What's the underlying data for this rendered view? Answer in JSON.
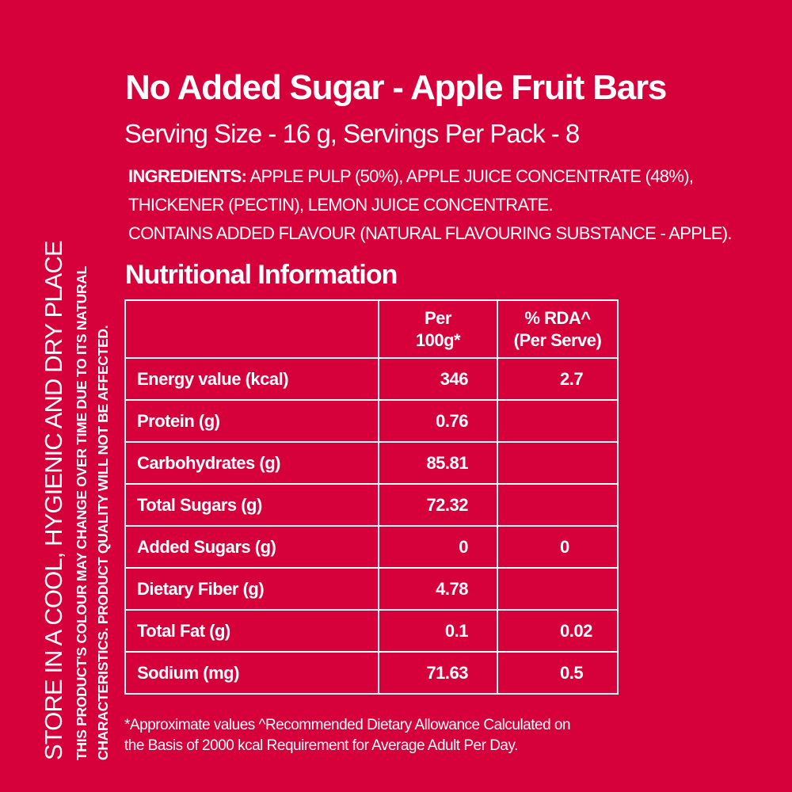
{
  "title": "No Added Sugar - Apple Fruit Bars",
  "serving": "Serving Size  - 16 g, Servings Per Pack - 8",
  "ingredients": {
    "label": "INGREDIENTS:",
    "line1": " APPLE PULP (50%), APPLE JUICE CONCENTRATE (48%),",
    "line2": "THICKENER (PECTIN), LEMON JUICE CONCENTRATE.",
    "line3": "CONTAINS ADDED FLAVOUR (NATURAL FLAVOURING SUBSTANCE - APPLE)."
  },
  "nutrition": {
    "heading": "Nutritional Information",
    "header_per100_line1": "Per",
    "header_per100_line2": "100g*",
    "header_rda_line1": "% RDA^",
    "header_rda_line2": "(Per Serve)",
    "rows": [
      {
        "name": "Energy value (kcal)",
        "per100": "346",
        "rda": "2.7"
      },
      {
        "name": "Protein (g)",
        "per100": "0.76",
        "rda": ""
      },
      {
        "name": "Carbohydrates (g)",
        "per100": "85.81",
        "rda": ""
      },
      {
        "name": "Total Sugars (g)",
        "per100": "72.32",
        "rda": ""
      },
      {
        "name": "Added Sugars (g)",
        "per100": "0",
        "rda": "0"
      },
      {
        "name": "Dietary Fiber (g)",
        "per100": "4.78",
        "rda": ""
      },
      {
        "name": "Total Fat (g)",
        "per100": "0.1",
        "rda": "0.02"
      },
      {
        "name": "Sodium (mg)",
        "per100": "71.63",
        "rda": "0.5"
      }
    ]
  },
  "footnote": {
    "line1": "*Approximate values ^Recommended Dietary Allowance Calculated on",
    "line2": "the Basis of 2000 kcal Requirement for Average Adult Per Day."
  },
  "side_text": {
    "store": "STORE IN A COOL, HYGIENIC AND DRY PLACE",
    "colour_line1": "THIS PRODUCT'S COLOUR MAY CHANGE OVER TIME DUE TO ITS NATURAL",
    "colour_line2": "CHARACTERISTICS. PRODUCT QUALITY WILL NOT BE AFFECTED."
  },
  "colors": {
    "background": "#d6003a",
    "text": "#ffffff"
  }
}
